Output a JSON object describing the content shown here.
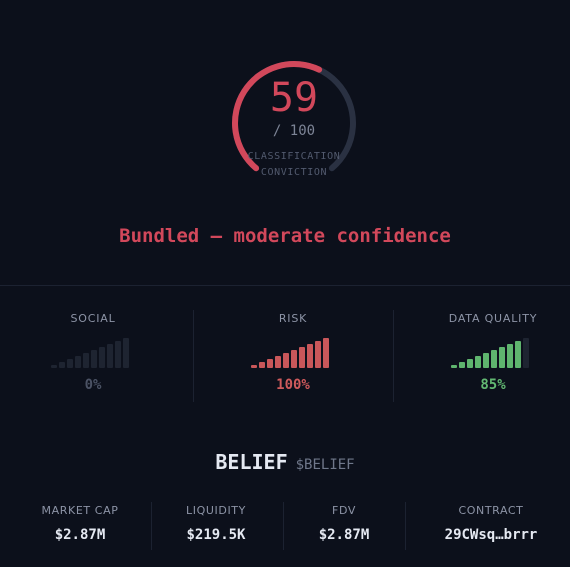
{
  "gauge": {
    "score": "59",
    "max_label": "/ 100",
    "caption_line1": "CLASSIFICATION",
    "caption_line2": "CONVICTION",
    "fraction": 0.59,
    "fill_color": "#d2485b",
    "track_color": "#2a3142"
  },
  "verdict": "Bundled — moderate confidence",
  "metrics": [
    {
      "label": "SOCIAL",
      "value": "0%",
      "level": 0.0,
      "color": "#3b4252",
      "value_color": "#4b5264"
    },
    {
      "label": "RISK",
      "value": "100%",
      "level": 1.0,
      "color": "#c9575a",
      "value_color": "#cf5a5c"
    },
    {
      "label": "DATA QUALITY",
      "value": "85%",
      "level": 0.85,
      "color": "#5fb56e",
      "value_color": "#62b872"
    }
  ],
  "token": {
    "name": "BELIEF",
    "ticker": "$BELIEF"
  },
  "stats": [
    {
      "label": "MARKET CAP",
      "value": "$2.87M"
    },
    {
      "label": "LIQUIDITY",
      "value": "$219.5K"
    },
    {
      "label": "FDV",
      "value": "$2.87M"
    },
    {
      "label": "CONTRACT",
      "value": "29CWsq…brrr"
    }
  ]
}
